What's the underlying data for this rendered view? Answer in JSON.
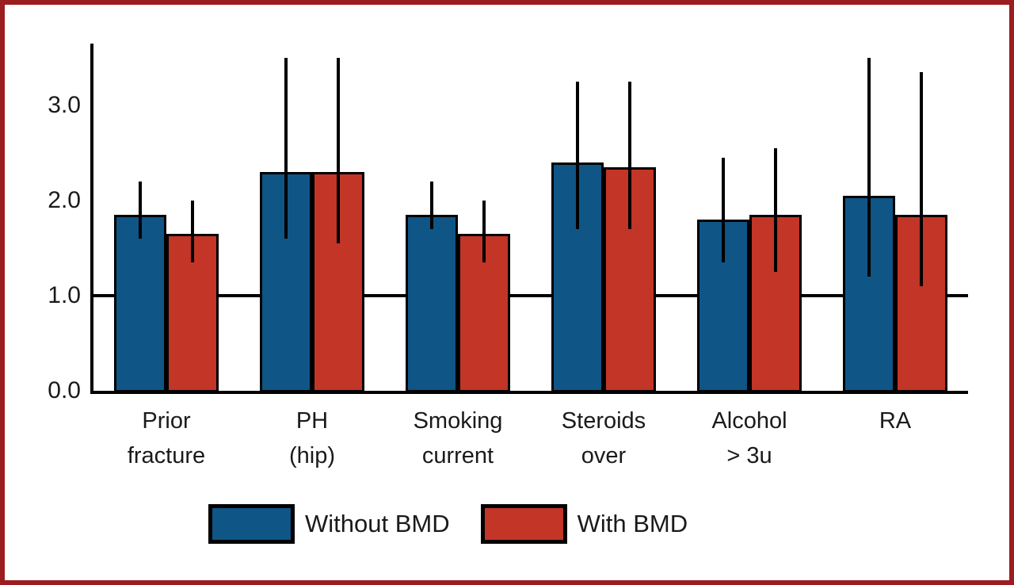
{
  "frame": {
    "border_color": "#9b1c21",
    "background_color": "#ffffff",
    "outline_color": "#000000"
  },
  "chart_data": {
    "type": "bar",
    "title": "",
    "xlabel": "",
    "ylabel": "",
    "categories": [
      "Prior fracture",
      "PH (hip)",
      "Smoking current",
      "Steroids over",
      "Alcohol > 3u",
      "RA"
    ],
    "category_label_lines": [
      [
        "Prior",
        "fracture"
      ],
      [
        "PH",
        "(hip)"
      ],
      [
        "Smoking",
        "current"
      ],
      [
        "Steroids",
        "over"
      ],
      [
        "Alcohol",
        "> 3u"
      ],
      [
        "RA"
      ]
    ],
    "series": [
      {
        "name": "Without BMD",
        "color": "#0f5586",
        "values": [
          1.85,
          2.3,
          1.85,
          2.4,
          1.8,
          2.05
        ],
        "ci_low": [
          1.6,
          1.6,
          1.7,
          1.7,
          1.35,
          1.2
        ],
        "ci_high": [
          2.2,
          3.5,
          2.2,
          3.25,
          2.45,
          3.5
        ]
      },
      {
        "name": "With BMD",
        "color": "#c23527",
        "values": [
          1.65,
          2.3,
          1.65,
          2.35,
          1.85,
          1.85
        ],
        "ci_low": [
          1.35,
          1.55,
          1.35,
          1.7,
          1.25,
          1.1
        ],
        "ci_high": [
          2.0,
          3.5,
          2.0,
          3.25,
          2.55,
          3.35
        ]
      }
    ],
    "yticks": [
      0.0,
      1.0,
      2.0,
      3.0
    ],
    "ytick_labels": [
      "0.0",
      "1.0",
      "2.0",
      "3.0"
    ],
    "ylim": [
      0,
      3.65
    ],
    "reference_line": 1.0,
    "grid": false,
    "legend_position": "bottom",
    "error_bars": true
  },
  "legend": {
    "items": [
      {
        "label": "Without BMD",
        "color": "#0f5586"
      },
      {
        "label": "With BMD",
        "color": "#c23527"
      }
    ]
  }
}
